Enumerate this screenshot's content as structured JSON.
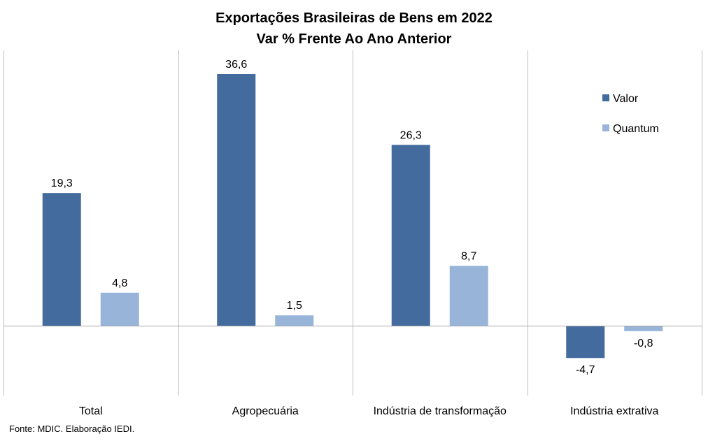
{
  "chart_data": {
    "type": "bar",
    "title": "Exportações Brasileiras de Bens em 2022",
    "subtitle": "Var % Frente Ao Ano Anterior",
    "categories": [
      "Total",
      "Agropecuária",
      "Indústria de transformação",
      "Indústria extrativa"
    ],
    "series": [
      {
        "name": "Valor",
        "values": [
          19.3,
          36.6,
          26.3,
          -4.7
        ],
        "labels": [
          "19,3",
          "36,6",
          "26,3",
          "-4,7"
        ],
        "color": "#436b9e"
      },
      {
        "name": "Quantum",
        "values": [
          4.8,
          1.5,
          8.7,
          -0.8
        ],
        "labels": [
          "4,8",
          "1,5",
          "8,7",
          "-0,8"
        ],
        "color": "#98b5d9"
      }
    ],
    "ylim": [
      -10,
      40
    ],
    "grid": false,
    "legend_position": "top-right",
    "xlabel": "",
    "ylabel": ""
  },
  "source": "Fonte: MDIC. Elaboração IEDI.",
  "colors": {
    "axis": "#a6a6a6",
    "divider": "#bfbfbf"
  }
}
